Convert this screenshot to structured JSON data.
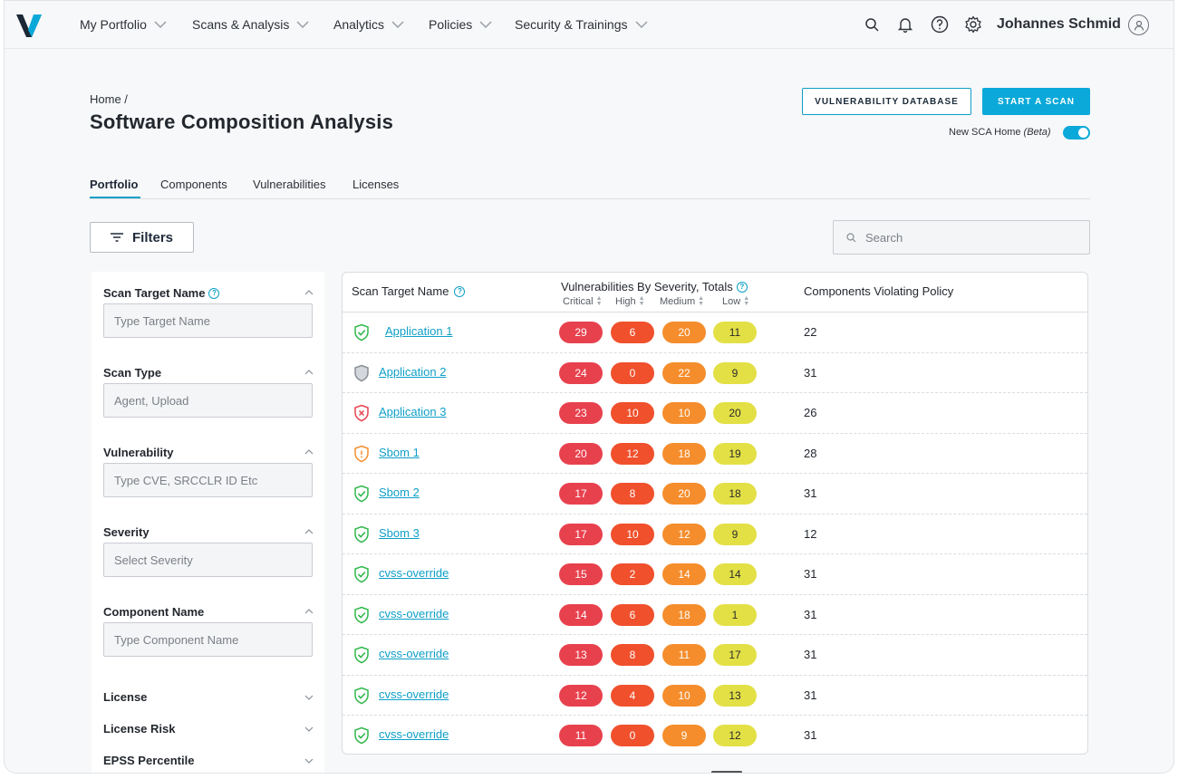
{
  "nav": {
    "items": [
      "My Portfolio",
      "Scans & Analysis",
      "Analytics",
      "Policies",
      "Security & Trainings"
    ],
    "user": "Johannes Schmid",
    "icons": [
      "search-icon",
      "bell-icon",
      "help-icon",
      "gear-icon",
      "user-avatar-icon"
    ]
  },
  "header": {
    "breadcrumb": "Home  /",
    "title": "Software Composition Analysis",
    "btn_vuln_db": "VULNERABILITY DATABASE",
    "btn_start_scan": "START A SCAN",
    "beta_label": "New SCA Home",
    "beta_suffix": "(Beta)",
    "beta_toggle_on": true
  },
  "tabs": [
    "Portfolio",
    "Components",
    "Vulnerabilities",
    "Licenses"
  ],
  "active_tab": "Portfolio",
  "filters_btn": "Filters",
  "search": {
    "placeholder": "Search"
  },
  "filter_panel": {
    "sections": [
      {
        "title": "Scan Target Name",
        "help": true,
        "placeholder": "Type Target Name",
        "kind": "input"
      },
      {
        "title": "Scan Type",
        "placeholder": "Agent, Upload",
        "kind": "select"
      },
      {
        "title": "Vulnerability",
        "placeholder": "Type CVE, SRCCLR ID Etc",
        "kind": "input"
      },
      {
        "title": "Severity",
        "placeholder": "Select Severity",
        "kind": "select"
      },
      {
        "title": "Component Name",
        "placeholder": "Type Component Name",
        "kind": "input"
      }
    ],
    "collapsed": [
      "License",
      "License Risk",
      "EPSS Percentile"
    ]
  },
  "table": {
    "col_name": "Scan Target Name",
    "col_vuln": "Vulnerabilities By Severity, Totals",
    "sub_cols": [
      "Critical",
      "High",
      "Medium",
      "Low"
    ],
    "col_comp": "Components Violating Policy",
    "rows": [
      {
        "name": "Application 1",
        "status": "pass",
        "critical": "29",
        "high": "6",
        "medium": "20",
        "low": "11",
        "comp": "22"
      },
      {
        "name": "Application 2",
        "status": "unknown",
        "critical": "24",
        "high": "0",
        "medium": "22",
        "low": "9",
        "comp": "31"
      },
      {
        "name": "Application 3",
        "status": "fail",
        "critical": "23",
        "high": "10",
        "medium": "10",
        "low": "20",
        "comp": "26"
      },
      {
        "name": "Sbom 1",
        "status": "warn",
        "critical": "20",
        "high": "12",
        "medium": "18",
        "low": "19",
        "comp": "28"
      },
      {
        "name": "Sbom 2",
        "status": "pass",
        "critical": "17",
        "high": "8",
        "medium": "20",
        "low": "18",
        "comp": "31"
      },
      {
        "name": "Sbom 3",
        "status": "pass",
        "critical": "17",
        "high": "10",
        "medium": "12",
        "low": "9",
        "comp": "12"
      },
      {
        "name": "cvss-override",
        "status": "pass",
        "critical": "15",
        "high": "2",
        "medium": "14",
        "low": "14",
        "comp": "31"
      },
      {
        "name": "cvss-override",
        "status": "pass",
        "critical": "14",
        "high": "6",
        "medium": "18",
        "low": "1",
        "comp": "31"
      },
      {
        "name": "cvss-override",
        "status": "pass",
        "critical": "13",
        "high": "8",
        "medium": "11",
        "low": "17",
        "comp": "31"
      },
      {
        "name": "cvss-override",
        "status": "pass",
        "critical": "12",
        "high": "4",
        "medium": "10",
        "low": "13",
        "comp": "31"
      },
      {
        "name": "cvss-override",
        "status": "pass",
        "critical": "11",
        "high": "0",
        "medium": "9",
        "low": "12",
        "comp": "31"
      }
    ]
  },
  "colors": {
    "accent": "#0aa9d9",
    "critical": "#e8414e",
    "high": "#f0502c",
    "medium": "#f58d2c",
    "low": "#e3e046",
    "pass": "#2fb84a",
    "fail": "#e8414e",
    "warn": "#f58d2c",
    "unknown": "#8a8f96"
  }
}
